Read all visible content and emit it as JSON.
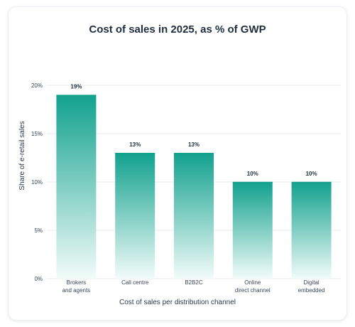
{
  "chart_data": {
    "type": "bar",
    "title": "Cost of sales in 2025, as % of GWP",
    "xlabel": "Cost of sales per distribution channel",
    "ylabel": "Share of e-retail sales",
    "ylim": [
      0,
      20
    ],
    "yticks": [
      "0%",
      "5%",
      "10%",
      "15%",
      "20%"
    ],
    "ytick_values": [
      0,
      5,
      10,
      15,
      20
    ],
    "grid": true,
    "categories": [
      [
        "Brokers",
        "and agents"
      ],
      [
        "Call centre"
      ],
      [
        "B2B2C"
      ],
      [
        "Online",
        "direct channel"
      ],
      [
        "Digital",
        "embedded"
      ]
    ],
    "values": [
      19,
      13,
      13,
      10,
      10
    ],
    "value_labels": [
      "19%",
      "13%",
      "13%",
      "10%",
      "10%"
    ],
    "colors": {
      "bar_top": "#12a18e",
      "bar_bottom": "#f2fcf9",
      "grid": "#e5e8ec"
    }
  }
}
